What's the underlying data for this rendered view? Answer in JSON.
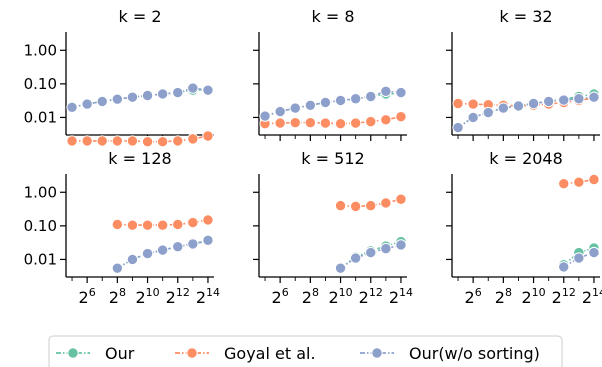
{
  "chart_data": [
    {
      "type": "line",
      "title": "k = 2",
      "x": [
        5,
        6,
        7,
        8,
        9,
        10,
        11,
        12,
        13,
        14
      ],
      "yscale": "log",
      "ylim": [
        0.003,
        3.5
      ],
      "yticks": [
        "1.00",
        "0.10",
        "0.01"
      ],
      "series": [
        {
          "name": "Our",
          "x": [
            5,
            6,
            7,
            8,
            9,
            10,
            11,
            12,
            13,
            14
          ],
          "values": [
            0.02,
            0.025,
            0.03,
            0.035,
            0.04,
            0.045,
            0.05,
            0.055,
            0.065,
            0.068
          ]
        },
        {
          "name": "Goyal et al.",
          "x": [
            5,
            6,
            7,
            8,
            9,
            10,
            11,
            12,
            13,
            14
          ],
          "values": [
            0.002,
            0.002,
            0.002,
            0.002,
            0.002,
            0.0019,
            0.0019,
            0.002,
            0.0023,
            0.0028
          ]
        },
        {
          "name": "Our(w/o sorting)",
          "x": [
            5,
            6,
            7,
            8,
            9,
            10,
            11,
            12,
            13,
            14
          ],
          "values": [
            0.02,
            0.025,
            0.03,
            0.035,
            0.04,
            0.045,
            0.05,
            0.055,
            0.075,
            0.065
          ]
        }
      ]
    },
    {
      "type": "line",
      "title": "k = 8",
      "x": [
        5,
        6,
        7,
        8,
        9,
        10,
        11,
        12,
        13,
        14
      ],
      "yscale": "log",
      "ylim": [
        0.003,
        3.5
      ],
      "series": [
        {
          "name": "Our",
          "x": [
            5,
            6,
            7,
            8,
            9,
            10,
            11,
            12,
            13,
            14
          ],
          "values": [
            0.011,
            0.015,
            0.019,
            0.023,
            0.028,
            0.032,
            0.036,
            0.042,
            0.05,
            0.052
          ]
        },
        {
          "name": "Goyal et al.",
          "x": [
            5,
            6,
            7,
            8,
            9,
            10,
            11,
            12,
            13,
            14
          ],
          "values": [
            0.0065,
            0.0068,
            0.007,
            0.007,
            0.0068,
            0.0065,
            0.0068,
            0.0075,
            0.0085,
            0.0105
          ]
        },
        {
          "name": "Our(w/o sorting)",
          "x": [
            5,
            6,
            7,
            8,
            9,
            10,
            11,
            12,
            13,
            14
          ],
          "values": [
            0.011,
            0.015,
            0.019,
            0.023,
            0.028,
            0.032,
            0.036,
            0.042,
            0.06,
            0.055
          ]
        }
      ]
    },
    {
      "type": "line",
      "title": "k = 32",
      "x": [
        5,
        6,
        7,
        8,
        9,
        10,
        11,
        12,
        13,
        14
      ],
      "yscale": "log",
      "ylim": [
        0.003,
        3.5
      ],
      "series": [
        {
          "name": "Our",
          "x": [
            5,
            6,
            7,
            8,
            9,
            10,
            11,
            12,
            13,
            14
          ],
          "values": [
            0.005,
            0.01,
            0.014,
            0.019,
            0.022,
            0.026,
            0.03,
            0.035,
            0.042,
            0.05
          ]
        },
        {
          "name": "Goyal et al.",
          "x": [
            5,
            6,
            7,
            8,
            9,
            10,
            11,
            12,
            13,
            14
          ],
          "values": [
            0.026,
            0.025,
            0.024,
            0.023,
            0.022,
            0.023,
            0.025,
            0.028,
            0.032,
            0.038
          ]
        },
        {
          "name": "Our(w/o sorting)",
          "x": [
            5,
            6,
            7,
            8,
            9,
            10,
            11,
            12,
            13,
            14
          ],
          "values": [
            0.005,
            0.01,
            0.014,
            0.019,
            0.022,
            0.026,
            0.03,
            0.033,
            0.036,
            0.04
          ]
        }
      ]
    },
    {
      "type": "line",
      "title": "k = 128",
      "x": [
        8,
        9,
        10,
        11,
        12,
        13,
        14
      ],
      "yscale": "log",
      "ylim": [
        0.003,
        3.5
      ],
      "yticks": [
        "1.00",
        "0.10",
        "0.01"
      ],
      "xticks": [
        "2^6",
        "2^8",
        "2^10",
        "2^12",
        "2^14"
      ],
      "series": [
        {
          "name": "Our",
          "x": [
            8,
            9,
            10,
            11,
            12,
            13,
            14
          ],
          "values": [
            0.0055,
            0.01,
            0.015,
            0.019,
            0.024,
            0.029,
            0.035
          ]
        },
        {
          "name": "Goyal et al.",
          "x": [
            8,
            9,
            10,
            11,
            12,
            13,
            14
          ],
          "values": [
            0.11,
            0.105,
            0.105,
            0.105,
            0.11,
            0.125,
            0.15
          ]
        },
        {
          "name": "Our(w/o sorting)",
          "x": [
            8,
            9,
            10,
            11,
            12,
            13,
            14
          ],
          "values": [
            0.0055,
            0.01,
            0.015,
            0.019,
            0.024,
            0.029,
            0.037
          ]
        }
      ]
    },
    {
      "type": "line",
      "title": "k = 512",
      "x": [
        10,
        11,
        12,
        13,
        14
      ],
      "yscale": "log",
      "ylim": [
        0.003,
        3.5
      ],
      "xticks": [
        "2^6",
        "2^8",
        "2^10",
        "2^12",
        "2^14"
      ],
      "series": [
        {
          "name": "Our",
          "x": [
            10,
            11,
            12,
            13,
            14
          ],
          "values": [
            0.0055,
            0.012,
            0.018,
            0.025,
            0.034
          ]
        },
        {
          "name": "Goyal et al.",
          "x": [
            10,
            11,
            12,
            13,
            14
          ],
          "values": [
            0.4,
            0.38,
            0.4,
            0.48,
            0.62
          ]
        },
        {
          "name": "Our(w/o sorting)",
          "x": [
            10,
            11,
            12,
            13,
            14
          ],
          "values": [
            0.0055,
            0.011,
            0.016,
            0.021,
            0.027
          ]
        }
      ]
    },
    {
      "type": "line",
      "title": "k = 2048",
      "x": [
        12,
        13,
        14
      ],
      "yscale": "log",
      "ylim": [
        0.003,
        3.5
      ],
      "xticks": [
        "2^6",
        "2^8",
        "2^10",
        "2^12",
        "2^14"
      ],
      "series": [
        {
          "name": "Our",
          "x": [
            12,
            13,
            14
          ],
          "values": [
            0.007,
            0.016,
            0.022
          ]
        },
        {
          "name": "Goyal et al.",
          "x": [
            12,
            13,
            14
          ],
          "values": [
            1.8,
            2.0,
            2.4
          ]
        },
        {
          "name": "Our(w/o sorting)",
          "x": [
            12,
            13,
            14
          ],
          "values": [
            0.006,
            0.011,
            0.016
          ]
        }
      ]
    }
  ],
  "legend": {
    "placement": "bottom-center",
    "entries": [
      "Our",
      "Goyal et al.",
      "Our(w/o sorting)"
    ]
  },
  "colors": {
    "Our": "#66c2a5",
    "Goyal et al.": "#fc8d62",
    "Our(w/o sorting)": "#8da0cb",
    "axis": "#000000"
  }
}
